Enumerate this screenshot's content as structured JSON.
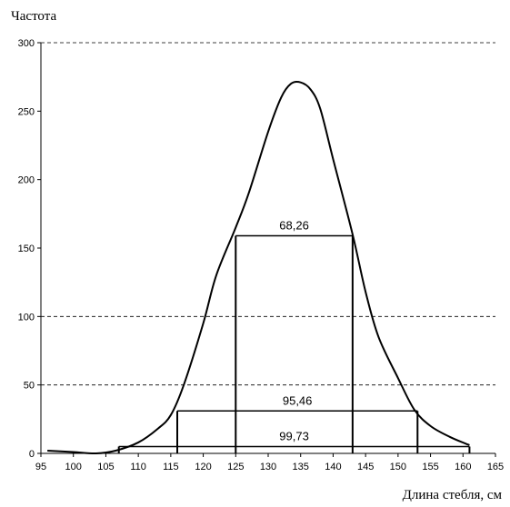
{
  "chart_data": {
    "type": "line",
    "title": "",
    "ylabel": "Частота",
    "xlabel": "Длина стебля, см",
    "xlim": [
      95,
      165
    ],
    "ylim": [
      0,
      300
    ],
    "x_ticks": [
      95,
      100,
      105,
      110,
      115,
      120,
      125,
      130,
      135,
      140,
      145,
      150,
      155,
      160,
      165
    ],
    "y_ticks": [
      0,
      50,
      100,
      150,
      200,
      250,
      300
    ],
    "grid_y_dashed": [
      50,
      100,
      300
    ],
    "grid": true,
    "legend": "none",
    "line_color": "#000000",
    "series": [
      {
        "x": [
          96,
          100,
          103.5,
          106.5,
          110,
          113,
          115,
          117,
          120,
          122,
          125,
          127,
          130,
          132,
          133.5,
          135,
          136.5,
          138,
          140,
          143,
          145,
          147,
          150,
          152.5,
          155,
          158,
          161
        ],
        "y": [
          2,
          1,
          0,
          2,
          8,
          18,
          28,
          50,
          95,
          130,
          165,
          190,
          235,
          260,
          270,
          271,
          266,
          252,
          215,
          160,
          118,
          85,
          55,
          32,
          20,
          12,
          6
        ]
      }
    ],
    "bands": [
      {
        "label": "68,26",
        "x_from": 125,
        "x_to": 143,
        "y": 159
      },
      {
        "label": "95,46",
        "x_from": 116,
        "x_to": 153,
        "y": 31
      },
      {
        "label": "99,73",
        "x_from": 107,
        "x_to": 161,
        "y": 5
      }
    ]
  }
}
